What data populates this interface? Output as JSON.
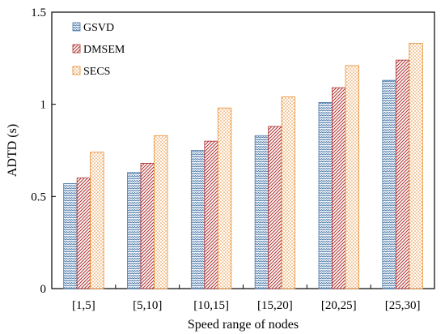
{
  "chart_data": {
    "type": "bar",
    "title": "",
    "xlabel": "Speed range of nodes",
    "ylabel": "ADTD (s)",
    "categories": [
      "[1,5]",
      "[5,10]",
      "[10,15]",
      "[15,20]",
      "[20,25]",
      "[25,30]"
    ],
    "series": [
      {
        "name": "GSVD",
        "values": [
          0.57,
          0.63,
          0.75,
          0.83,
          1.01,
          1.13
        ],
        "color": "#4a78a8",
        "pattern": "zigzag"
      },
      {
        "name": "DMSEM",
        "values": [
          0.6,
          0.68,
          0.8,
          0.88,
          1.09,
          1.24
        ],
        "color": "#b02d2d",
        "pattern": "diagonal"
      },
      {
        "name": "SECS",
        "values": [
          0.74,
          0.83,
          0.98,
          1.04,
          1.21,
          1.33
        ],
        "color": "#e8892a",
        "pattern": "dots"
      }
    ],
    "ylim": [
      0,
      1.5
    ],
    "yticks": [
      "0",
      "0.5",
      "1",
      "1.5"
    ],
    "grid": false,
    "legend_position": "top-left"
  }
}
